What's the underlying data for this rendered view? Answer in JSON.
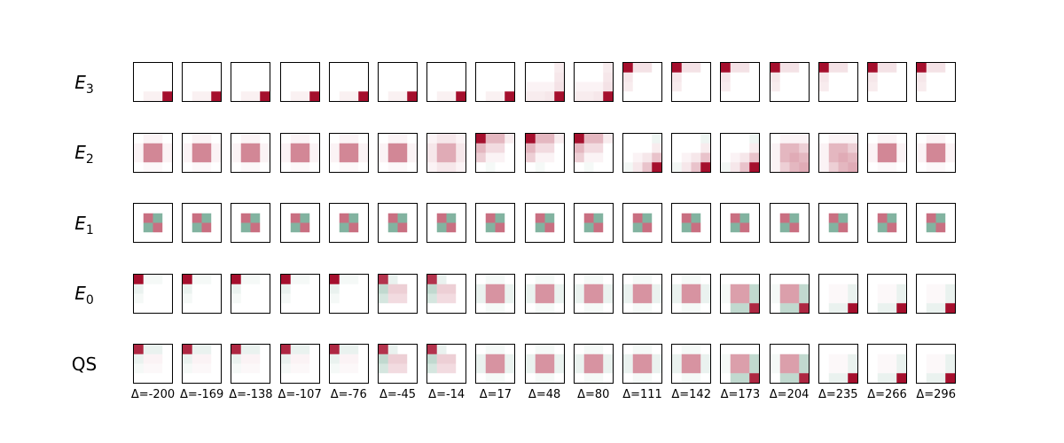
{
  "figure": {
    "rows": [
      {
        "label": "E",
        "sub": "3"
      },
      {
        "label": "E",
        "sub": "2"
      },
      {
        "label": "E",
        "sub": "1"
      },
      {
        "label": "E",
        "sub": "0"
      },
      {
        "label": "QS",
        "sub": ""
      }
    ],
    "columns": [
      "Δ=-200",
      "Δ=-169",
      "Δ=-138",
      "Δ=-107",
      "Δ=-76",
      "Δ=-45",
      "Δ=-14",
      "Δ=17",
      "Δ=48",
      "Δ=80",
      "Δ=111",
      "Δ=142",
      "Δ=173",
      "Δ=204",
      "Δ=235",
      "Δ=266",
      "Δ=296"
    ],
    "colormap": {
      "positive": "#a50f2d",
      "negative": "#2f8060",
      "zero": "#ffffff"
    },
    "matrices": {
      "E3_corner_br": [
        [
          0,
          0,
          0,
          0
        ],
        [
          0,
          0,
          0,
          0
        ],
        [
          0,
          0,
          0,
          0
        ],
        [
          0,
          0.06,
          0.06,
          1
        ]
      ],
      "E3_corner_br_late": [
        [
          0,
          0,
          0,
          0.08
        ],
        [
          0,
          0,
          0,
          0.1
        ],
        [
          0.05,
          0.05,
          0.05,
          0.12
        ],
        [
          0.08,
          0.08,
          0.1,
          1
        ]
      ],
      "E3_corner_tl": [
        [
          1,
          0.12,
          0.12,
          0
        ],
        [
          0.1,
          0,
          0,
          0
        ],
        [
          0.08,
          0,
          0,
          0
        ],
        [
          0,
          0,
          0,
          0
        ]
      ],
      "E2_center": [
        [
          0,
          0.05,
          0.05,
          0
        ],
        [
          0.05,
          0.5,
          0.5,
          0.05
        ],
        [
          0.05,
          0.5,
          0.5,
          0.05
        ],
        [
          0,
          0.03,
          0.03,
          0
        ]
      ],
      "E2_center_weak": [
        [
          0.05,
          0.1,
          0.1,
          0.05
        ],
        [
          0.1,
          0.35,
          0.35,
          0.1
        ],
        [
          0.1,
          0.35,
          0.35,
          0.1
        ],
        [
          0.05,
          0.1,
          0.1,
          0.05
        ]
      ],
      "E2_corner_tl": [
        [
          1,
          0.3,
          0.3,
          0.08
        ],
        [
          0.3,
          0.15,
          0.15,
          0
        ],
        [
          0.2,
          0.05,
          0.05,
          0
        ],
        [
          0,
          -0.05,
          0,
          0
        ]
      ],
      "E2_corner_br": [
        [
          0,
          0,
          0,
          -0.08
        ],
        [
          0,
          0,
          0,
          0.08
        ],
        [
          0,
          0.05,
          0.1,
          0.25
        ],
        [
          -0.06,
          0.1,
          0.25,
          1
        ]
      ],
      "E2_center_br": [
        [
          0,
          0.05,
          0.05,
          0.05
        ],
        [
          0.05,
          0.3,
          0.3,
          0.2
        ],
        [
          0.05,
          0.3,
          0.35,
          0.3
        ],
        [
          0.05,
          0.2,
          0.3,
          0.35
        ]
      ],
      "E1_checker": [
        [
          0,
          0,
          0,
          0
        ],
        [
          0,
          0.6,
          -0.6,
          0
        ],
        [
          0,
          -0.6,
          0.6,
          0
        ],
        [
          0,
          0,
          0,
          0
        ]
      ],
      "E0_corner_tl": [
        [
          1,
          -0.05,
          -0.05,
          0
        ],
        [
          -0.1,
          0,
          0,
          0
        ],
        [
          -0.05,
          0,
          0,
          0
        ],
        [
          0,
          0,
          0,
          0
        ]
      ],
      "E0_mix": [
        [
          0.85,
          -0.1,
          0,
          0
        ],
        [
          -0.3,
          0.2,
          0.2,
          0
        ],
        [
          -0.2,
          0.15,
          0.15,
          0
        ],
        [
          0,
          0,
          0,
          0
        ]
      ],
      "E0_center": [
        [
          0,
          -0.05,
          -0.05,
          0
        ],
        [
          -0.1,
          0.45,
          0.45,
          -0.1
        ],
        [
          -0.1,
          0.45,
          0.45,
          -0.1
        ],
        [
          0,
          -0.05,
          -0.05,
          0
        ]
      ],
      "E0_center_br": [
        [
          0,
          0,
          0,
          0
        ],
        [
          -0.05,
          0.4,
          0.4,
          -0.3
        ],
        [
          -0.05,
          0.4,
          0.4,
          -0.3
        ],
        [
          0,
          -0.3,
          -0.3,
          0.9
        ]
      ],
      "E0_corner_br": [
        [
          0,
          0,
          0,
          0
        ],
        [
          0,
          0.03,
          0.03,
          -0.1
        ],
        [
          0,
          0.03,
          0.03,
          -0.1
        ],
        [
          0,
          -0.1,
          -0.1,
          1
        ]
      ],
      "QS_corner_tl": [
        [
          0.9,
          -0.1,
          -0.1,
          0
        ],
        [
          -0.1,
          0.05,
          0.05,
          0
        ],
        [
          -0.05,
          0.03,
          0.03,
          0
        ],
        [
          0,
          0,
          0,
          0
        ]
      ]
    },
    "grid": [
      [
        "E3_corner_br",
        "E3_corner_br",
        "E3_corner_br",
        "E3_corner_br",
        "E3_corner_br",
        "E3_corner_br",
        "E3_corner_br",
        "E3_corner_br",
        "E3_corner_br_late",
        "E3_corner_br_late",
        "E3_corner_tl",
        "E3_corner_tl",
        "E3_corner_tl",
        "E3_corner_tl",
        "E3_corner_tl",
        "E3_corner_tl",
        "E3_corner_tl"
      ],
      [
        "E2_center",
        "E2_center",
        "E2_center",
        "E2_center",
        "E2_center",
        "E2_center",
        "E2_center_weak",
        "E2_corner_tl",
        "E2_corner_tl",
        "E2_corner_tl",
        "E2_corner_br",
        "E2_corner_br",
        "E2_corner_br",
        "E2_center_br",
        "E2_center_br",
        "E2_center",
        "E2_center"
      ],
      [
        "E1_checker",
        "E1_checker",
        "E1_checker",
        "E1_checker",
        "E1_checker",
        "E1_checker",
        "E1_checker",
        "E1_checker",
        "E1_checker",
        "E1_checker",
        "E1_checker",
        "E1_checker",
        "E1_checker",
        "E1_checker",
        "E1_checker",
        "E1_checker",
        "E1_checker"
      ],
      [
        "E0_corner_tl",
        "E0_corner_tl",
        "E0_corner_tl",
        "E0_corner_tl",
        "E0_corner_tl",
        "E0_mix",
        "E0_mix",
        "E0_center",
        "E0_center",
        "E0_center",
        "E0_center",
        "E0_center",
        "E0_center_br",
        "E0_center_br",
        "E0_corner_br",
        "E0_corner_br",
        "E0_corner_br"
      ],
      [
        "QS_corner_tl",
        "QS_corner_tl",
        "QS_corner_tl",
        "QS_corner_tl",
        "QS_corner_tl",
        "E0_mix",
        "E0_mix",
        "E0_center",
        "E0_center",
        "E0_center",
        "E0_center",
        "E0_center",
        "E0_center_br",
        "E0_center_br",
        "E0_corner_br",
        "E0_corner_br",
        "E0_corner_br"
      ]
    ]
  }
}
